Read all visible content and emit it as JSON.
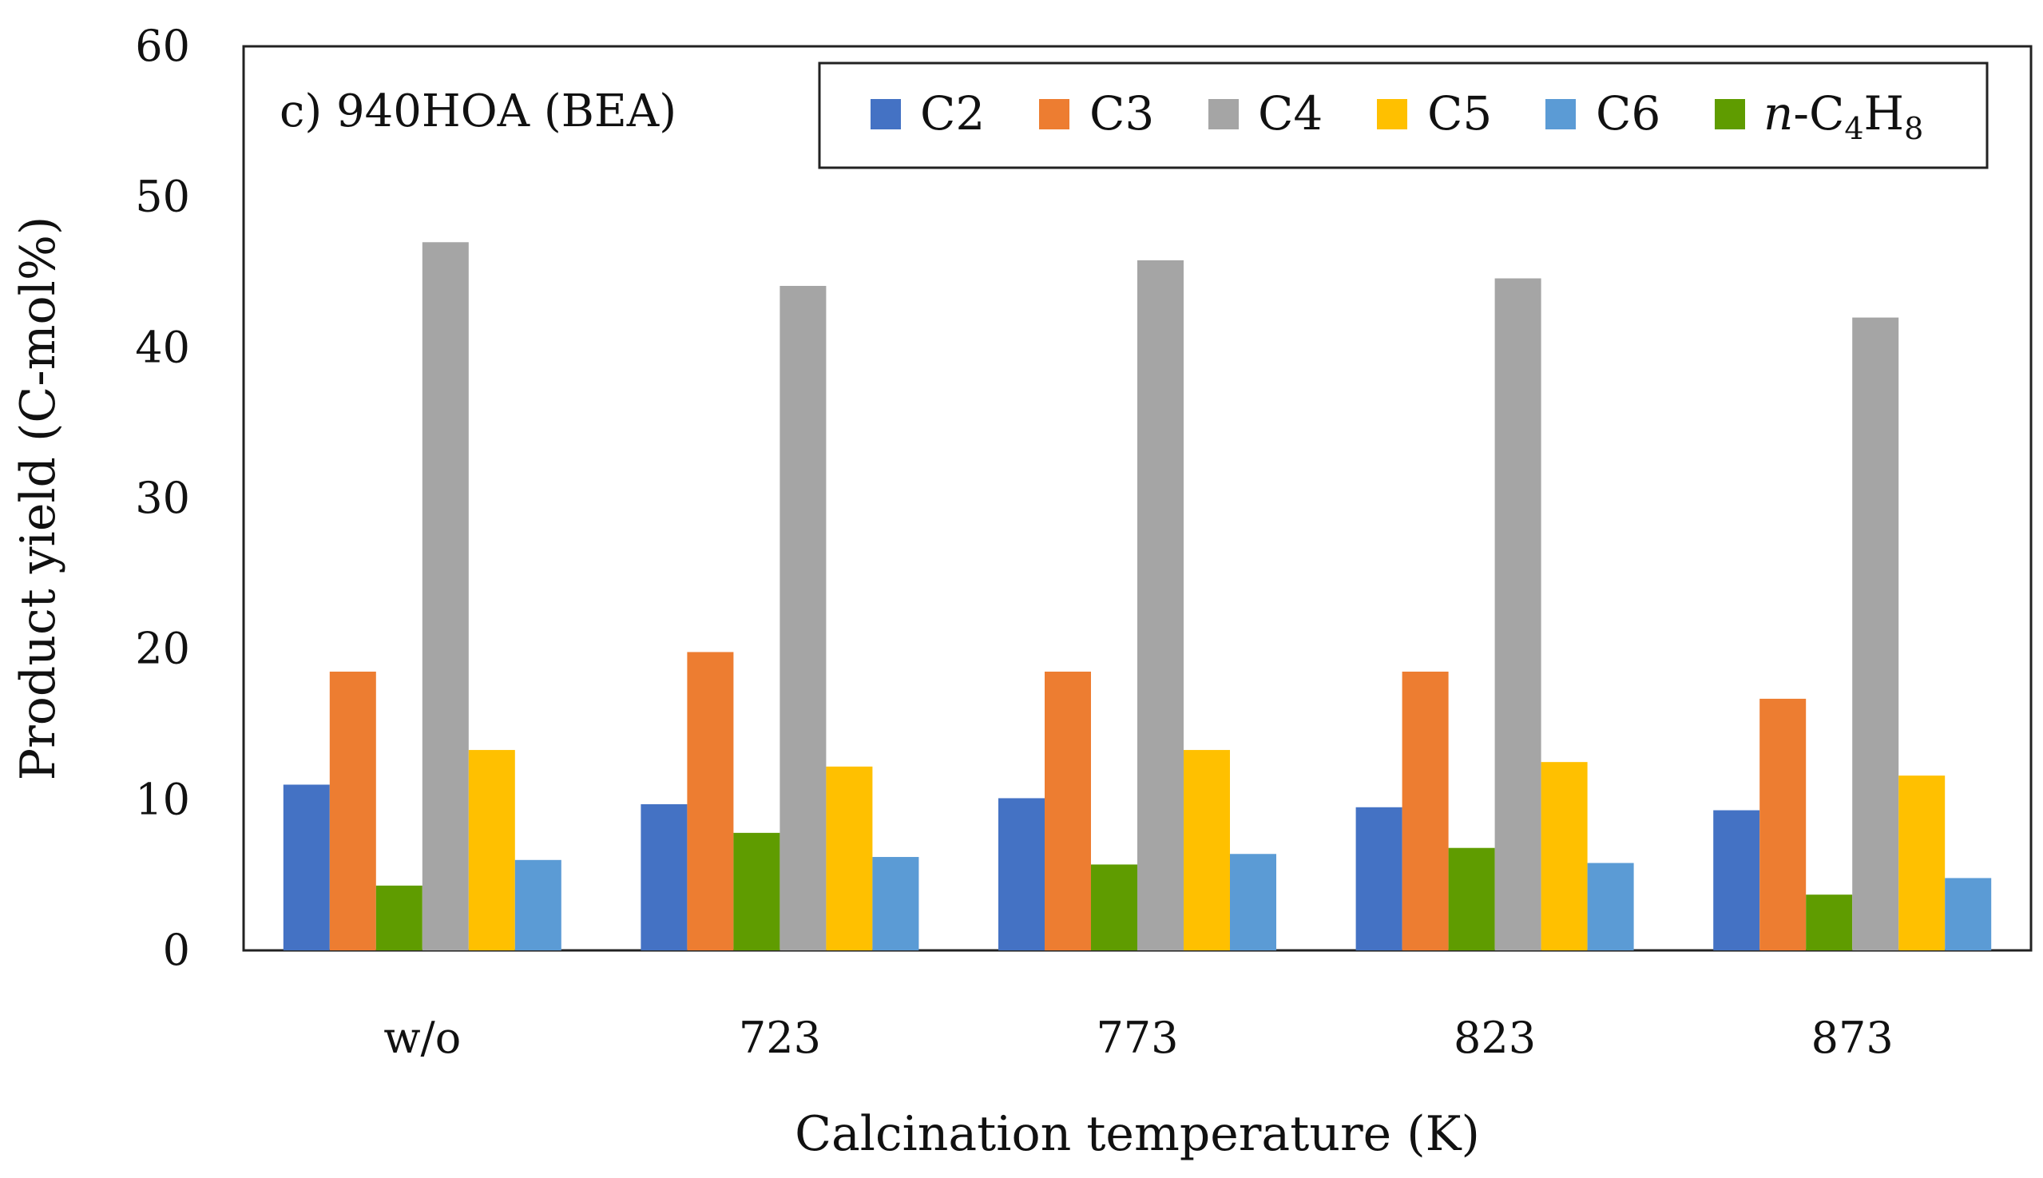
{
  "chart_data": {
    "type": "bar",
    "panel_label": "c) 940HOA (BEA)",
    "title": "",
    "xlabel": "Calcination temperature (K)",
    "ylabel": "Product yield (C-mol%)",
    "ylim": [
      0,
      60
    ],
    "yticks": [
      "0",
      "10",
      "20",
      "30",
      "40",
      "50",
      "60"
    ],
    "categories": [
      "w/o",
      "723",
      "773",
      "823",
      "873"
    ],
    "legend_position": "top-right",
    "bar_order": [
      "C2",
      "C3",
      "n-C4H8",
      "C4",
      "C5",
      "C6"
    ],
    "series": [
      {
        "name": "C2",
        "legend_text": "C2",
        "color": "#4472C4",
        "values": [
          11.0,
          9.7,
          10.1,
          9.5,
          9.3
        ]
      },
      {
        "name": "C3",
        "legend_text": "C3",
        "color": "#ED7D31",
        "values": [
          18.5,
          19.8,
          18.5,
          18.5,
          16.7
        ]
      },
      {
        "name": "C4",
        "legend_text": "C4",
        "color": "#A5A5A5",
        "values": [
          47.0,
          44.1,
          45.8,
          44.6,
          42.0
        ]
      },
      {
        "name": "C5",
        "legend_text": "C5",
        "color": "#FFC000",
        "values": [
          13.3,
          12.2,
          13.3,
          12.5,
          11.6
        ]
      },
      {
        "name": "C6",
        "legend_text": "C6",
        "color": "#5B9BD5",
        "values": [
          6.0,
          6.2,
          6.4,
          5.8,
          4.8
        ]
      },
      {
        "name": "n-C4H8",
        "legend_text": "n-C4H8",
        "legend_italic": "n",
        "legend_rest": "-C",
        "legend_sub1": "4",
        "legend_mid": "H",
        "legend_sub2": "8",
        "color": "#5F9C00",
        "values": [
          4.3,
          7.8,
          5.7,
          6.8,
          3.7
        ]
      }
    ]
  }
}
